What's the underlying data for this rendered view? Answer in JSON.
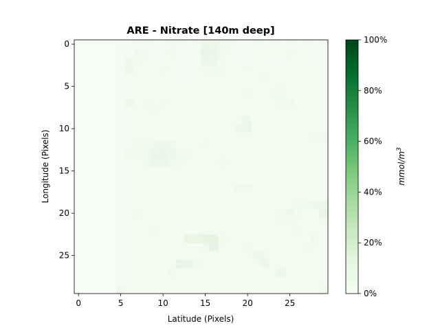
{
  "chart_data": {
    "type": "heatmap",
    "title": "ARE - Nitrate [140m deep]",
    "xlabel": "Latitude (Pixels)",
    "ylabel": "Longitude (Pixels)",
    "colorbar_label": "mmol/m",
    "colorbar_label_superscript": "3",
    "xlim": [
      -0.5,
      29.5
    ],
    "ylim": [
      29.5,
      -0.5
    ],
    "x_ticks": [
      0,
      5,
      10,
      15,
      20,
      25
    ],
    "y_ticks": [
      0,
      5,
      10,
      15,
      20,
      25
    ],
    "colorbar_ticks": [
      "0%",
      "20%",
      "40%",
      "60%",
      "80%",
      "100%"
    ],
    "colormap": "Greens",
    "color_min": "#f7fcf5",
    "color_max": "#00441b",
    "grid": false,
    "values": [
      [
        0,
        0,
        0,
        0,
        0,
        1,
        2,
        3,
        3,
        2,
        2,
        4,
        3,
        2,
        3,
        8,
        7,
        5,
        3,
        2,
        2,
        3,
        2,
        3,
        2,
        3,
        2,
        3,
        2,
        3
      ],
      [
        0,
        0,
        0,
        0,
        0,
        1,
        2,
        5,
        4,
        2,
        3,
        4,
        3,
        2,
        3,
        10,
        9,
        5,
        3,
        2,
        2,
        3,
        3,
        3,
        3,
        4,
        3,
        3,
        2,
        3
      ],
      [
        0,
        0,
        0,
        0,
        0,
        2,
        6,
        4,
        3,
        3,
        3,
        3,
        3,
        2,
        3,
        8,
        7,
        4,
        3,
        2,
        3,
        3,
        3,
        2,
        3,
        3,
        3,
        3,
        2,
        3
      ],
      [
        0,
        0,
        0,
        0,
        0,
        2,
        7,
        3,
        3,
        3,
        4,
        3,
        2,
        2,
        3,
        4,
        4,
        4,
        3,
        3,
        4,
        3,
        3,
        3,
        3,
        3,
        3,
        3,
        3,
        3
      ],
      [
        0,
        0,
        0,
        0,
        0,
        2,
        3,
        3,
        3,
        3,
        3,
        3,
        2,
        3,
        3,
        3,
        3,
        3,
        3,
        3,
        3,
        3,
        4,
        3,
        3,
        3,
        3,
        3,
        3,
        3
      ],
      [
        0,
        0,
        0,
        0,
        0,
        2,
        3,
        3,
        3,
        3,
        3,
        3,
        3,
        3,
        3,
        3,
        3,
        3,
        3,
        3,
        3,
        3,
        3,
        3,
        4,
        3,
        3,
        3,
        3,
        3
      ],
      [
        0,
        0,
        0,
        0,
        0,
        2,
        3,
        3,
        3,
        3,
        3,
        3,
        3,
        3,
        3,
        3,
        3,
        3,
        3,
        3,
        4,
        3,
        3,
        4,
        4,
        3,
        3,
        3,
        3,
        3
      ],
      [
        0,
        0,
        0,
        0,
        0,
        2,
        6,
        3,
        4,
        3,
        4,
        3,
        3,
        3,
        3,
        3,
        3,
        3,
        3,
        3,
        3,
        3,
        3,
        3,
        5,
        5,
        3,
        3,
        3,
        3
      ],
      [
        0,
        0,
        0,
        0,
        0,
        2,
        3,
        3,
        3,
        4,
        3,
        3,
        3,
        3,
        3,
        3,
        3,
        3,
        3,
        3,
        3,
        3,
        3,
        3,
        3,
        3,
        3,
        3,
        3,
        3
      ],
      [
        0,
        0,
        0,
        0,
        0,
        2,
        3,
        3,
        3,
        3,
        3,
        3,
        3,
        3,
        3,
        3,
        3,
        3,
        3,
        4,
        7,
        3,
        3,
        3,
        3,
        3,
        3,
        3,
        3,
        3
      ],
      [
        0,
        0,
        0,
        0,
        0,
        2,
        3,
        3,
        3,
        3,
        3,
        3,
        3,
        3,
        3,
        3,
        3,
        3,
        3,
        7,
        7,
        3,
        3,
        3,
        3,
        3,
        3,
        3,
        3,
        3
      ],
      [
        0,
        0,
        0,
        0,
        0,
        2,
        3,
        3,
        3,
        3,
        3,
        3,
        3,
        3,
        3,
        3,
        3,
        3,
        3,
        3,
        3,
        3,
        3,
        3,
        3,
        3,
        3,
        3,
        5,
        5
      ],
      [
        0,
        0,
        0,
        0,
        0,
        2,
        3,
        5,
        4,
        6,
        7,
        6,
        3,
        3,
        3,
        4,
        3,
        3,
        3,
        3,
        3,
        3,
        3,
        3,
        3,
        3,
        3,
        3,
        3,
        3
      ],
      [
        0,
        0,
        0,
        0,
        0,
        2,
        6,
        5,
        6,
        9,
        9,
        7,
        5,
        4,
        3,
        3,
        3,
        3,
        3,
        3,
        3,
        3,
        3,
        3,
        3,
        3,
        3,
        3,
        3,
        3
      ],
      [
        0,
        0,
        0,
        0,
        0,
        2,
        3,
        3,
        4,
        7,
        8,
        5,
        4,
        3,
        3,
        3,
        3,
        5,
        3,
        3,
        3,
        3,
        3,
        3,
        3,
        3,
        3,
        3,
        3,
        3
      ],
      [
        0,
        0,
        0,
        0,
        0,
        2,
        3,
        3,
        3,
        3,
        3,
        3,
        3,
        3,
        3,
        3,
        3,
        3,
        3,
        3,
        3,
        3,
        3,
        3,
        3,
        3,
        3,
        3,
        3,
        3
      ],
      [
        0,
        0,
        0,
        0,
        0,
        2,
        3,
        3,
        3,
        3,
        3,
        3,
        3,
        3,
        3,
        3,
        3,
        3,
        3,
        3,
        3,
        3,
        3,
        3,
        3,
        3,
        3,
        3,
        3,
        3
      ],
      [
        0,
        0,
        0,
        0,
        0,
        2,
        3,
        3,
        3,
        3,
        3,
        3,
        3,
        3,
        3,
        3,
        3,
        3,
        3,
        6,
        6,
        3,
        3,
        3,
        3,
        3,
        3,
        3,
        3,
        3
      ],
      [
        0,
        0,
        0,
        0,
        0,
        2,
        3,
        3,
        3,
        3,
        3,
        3,
        3,
        3,
        3,
        3,
        3,
        3,
        3,
        3,
        3,
        3,
        3,
        3,
        3,
        3,
        3,
        3,
        3,
        3
      ],
      [
        0,
        0,
        0,
        0,
        0,
        2,
        3,
        3,
        3,
        3,
        3,
        3,
        3,
        3,
        3,
        3,
        3,
        3,
        3,
        3,
        3,
        3,
        3,
        3,
        3,
        3,
        4,
        5,
        6,
        8
      ],
      [
        0,
        0,
        0,
        0,
        0,
        2,
        3,
        5,
        3,
        3,
        3,
        3,
        3,
        3,
        3,
        3,
        3,
        3,
        3,
        3,
        3,
        3,
        3,
        3,
        5,
        6,
        4,
        3,
        3,
        10
      ],
      [
        0,
        0,
        0,
        0,
        0,
        2,
        3,
        3,
        3,
        3,
        3,
        3,
        3,
        3,
        3,
        3,
        3,
        3,
        3,
        3,
        3,
        3,
        3,
        3,
        5,
        4,
        3,
        3,
        3,
        6
      ],
      [
        0,
        0,
        0,
        0,
        0,
        2,
        3,
        3,
        3,
        4,
        3,
        3,
        3,
        3,
        3,
        3,
        3,
        3,
        3,
        3,
        3,
        3,
        3,
        3,
        3,
        3,
        4,
        3,
        3,
        3
      ],
      [
        0,
        0,
        0,
        0,
        0,
        2,
        3,
        3,
        3,
        3,
        3,
        3,
        3,
        10,
        10,
        11,
        12,
        5,
        3,
        3,
        3,
        3,
        3,
        3,
        3,
        3,
        3,
        3,
        5,
        3
      ],
      [
        0,
        0,
        0,
        0,
        0,
        2,
        3,
        3,
        3,
        3,
        3,
        3,
        3,
        3,
        3,
        5,
        12,
        3,
        3,
        3,
        5,
        3,
        3,
        3,
        3,
        3,
        3,
        5,
        3,
        3
      ],
      [
        0,
        0,
        0,
        0,
        0,
        2,
        3,
        3,
        3,
        3,
        3,
        3,
        3,
        3,
        3,
        3,
        3,
        3,
        3,
        3,
        3,
        6,
        6,
        3,
        3,
        3,
        3,
        3,
        3,
        3
      ],
      [
        0,
        0,
        0,
        0,
        0,
        2,
        3,
        3,
        3,
        3,
        3,
        3,
        10,
        9,
        4,
        3,
        3,
        3,
        3,
        3,
        3,
        3,
        8,
        3,
        3,
        3,
        3,
        3,
        3,
        3
      ],
      [
        0,
        0,
        0,
        0,
        0,
        2,
        3,
        3,
        3,
        3,
        3,
        5,
        3,
        3,
        3,
        3,
        3,
        3,
        3,
        3,
        3,
        3,
        3,
        3,
        8,
        3,
        3,
        3,
        3,
        3
      ],
      [
        0,
        0,
        0,
        0,
        0,
        2,
        3,
        3,
        3,
        3,
        3,
        3,
        3,
        3,
        3,
        3,
        3,
        3,
        3,
        3,
        3,
        3,
        3,
        3,
        3,
        3,
        3,
        3,
        3,
        3
      ],
      [
        0,
        0,
        0,
        0,
        0,
        5,
        3,
        3,
        3,
        3,
        3,
        3,
        3,
        3,
        3,
        3,
        3,
        3,
        3,
        3,
        3,
        3,
        3,
        3,
        3,
        3,
        3,
        3,
        3,
        6
      ]
    ]
  }
}
